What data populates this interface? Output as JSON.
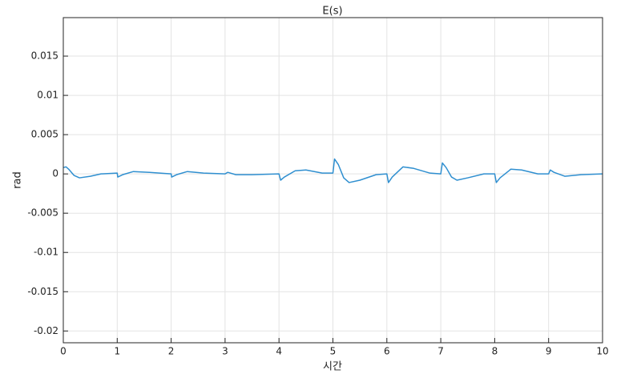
{
  "chart_data": {
    "type": "line",
    "title": "E(s)",
    "x_label": "시간",
    "y_label": "rad",
    "x": [
      0,
      0.05,
      0.1,
      0.2,
      0.3,
      0.5,
      0.7,
      1.0,
      1.01,
      1.1,
      1.3,
      1.6,
      2.0,
      2.01,
      2.1,
      2.3,
      2.6,
      3.0,
      3.05,
      3.2,
      3.5,
      4.0,
      4.03,
      4.1,
      4.3,
      4.5,
      4.8,
      5.0,
      5.03,
      5.1,
      5.2,
      5.3,
      5.5,
      5.8,
      6.0,
      6.03,
      6.1,
      6.3,
      6.5,
      6.8,
      7.0,
      7.03,
      7.1,
      7.2,
      7.3,
      7.5,
      7.8,
      8.0,
      8.03,
      8.1,
      8.3,
      8.5,
      8.8,
      9.0,
      9.03,
      9.1,
      9.3,
      9.6,
      10
    ],
    "series": [
      {
        "name": "E(s)",
        "color": "#2f8fd0",
        "values": [
          0.0008,
          0.0009,
          0.0006,
          -0.0002,
          -0.0005,
          -0.0003,
          0,
          0.0001,
          -0.0004,
          -0.0001,
          0.0003,
          0.0002,
          0,
          -0.0004,
          -0.0001,
          0.0003,
          0.0001,
          0,
          0.0002,
          -0.0001,
          -0.0001,
          0,
          -0.0008,
          -0.0004,
          0.0004,
          0.0005,
          0.0001,
          0.0001,
          0.0019,
          0.0012,
          -0.0005,
          -0.0011,
          -0.0008,
          -0.0001,
          0,
          -0.0011,
          -0.0004,
          0.0009,
          0.0007,
          0.0001,
          0,
          0.0014,
          0.0008,
          -0.0004,
          -0.0008,
          -0.0005,
          0,
          0,
          -0.0011,
          -0.0005,
          0.0006,
          0.0005,
          0,
          0,
          0.0005,
          0.0002,
          -0.0003,
          -0.0001,
          0
        ]
      }
    ],
    "xlim": [
      0,
      10
    ],
    "xticks": [
      0,
      1,
      2,
      3,
      4,
      5,
      6,
      7,
      8,
      9,
      10
    ],
    "ylim": [
      -0.0215,
      0.0199
    ],
    "yticks": [
      -0.02,
      -0.015,
      -0.01,
      -0.005,
      0,
      0.005,
      0.01,
      0.015
    ],
    "grid": true
  }
}
